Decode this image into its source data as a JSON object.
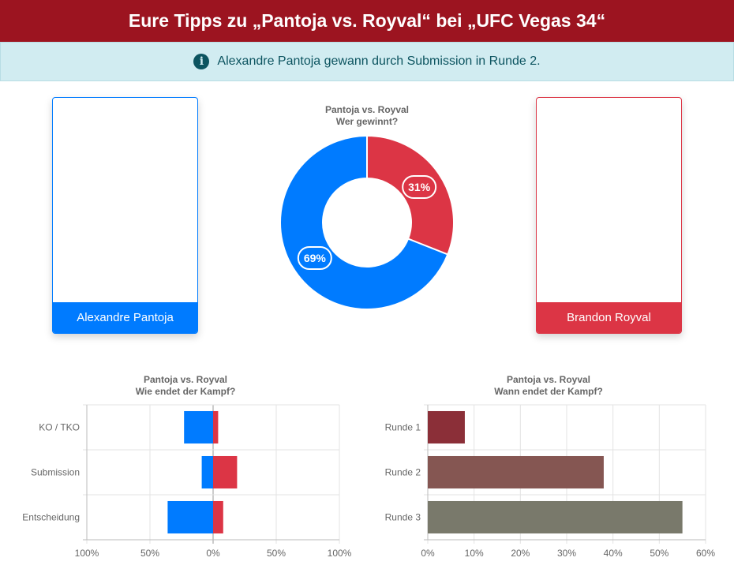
{
  "header": {
    "title": "Eure Tipps zu „Pantoja vs. Royval“ bei „UFC Vegas 34“"
  },
  "info": {
    "icon": "info-circle-icon",
    "text": "Alexandre Pantoja gewann durch Submission in Runde 2."
  },
  "fighters": {
    "left": {
      "name": "Alexandre Pantoja",
      "color": "#007bff"
    },
    "right": {
      "name": "Brandon Royval",
      "color": "#dc3545"
    }
  },
  "chart_data": [
    {
      "type": "pie",
      "title": "Pantoja vs. Royval",
      "subtitle": "Wer gewinnt?",
      "categories": [
        "Alexandre Pantoja",
        "Brandon Royval"
      ],
      "values": [
        69,
        31
      ],
      "labels": [
        "69%",
        "31%"
      ],
      "colors": [
        "#007bff",
        "#dc3545"
      ]
    },
    {
      "type": "bar",
      "orientation": "horizontal-diverging",
      "title": "Pantoja vs. Royval",
      "subtitle": "Wie endet der Kampf?",
      "categories": [
        "KO / TKO",
        "Submission",
        "Entscheidung"
      ],
      "series": [
        {
          "values": [
            -23,
            -9,
            -36
          ],
          "color": "#007bff"
        },
        {
          "values": [
            4,
            19,
            8
          ],
          "color": "#dc3545"
        }
      ],
      "xlim": [
        -100,
        100
      ],
      "xticks": [
        "100%",
        "50%",
        "0%",
        "50%",
        "100%"
      ],
      "grid": true
    },
    {
      "type": "bar",
      "orientation": "horizontal",
      "title": "Pantoja vs. Royval",
      "subtitle": "Wann endet der Kampf?",
      "categories": [
        "Runde 1",
        "Runde 2",
        "Runde 3"
      ],
      "values": [
        8,
        38,
        55
      ],
      "colors": [
        "#8b2f38",
        "#855652",
        "#79796b"
      ],
      "xlim": [
        0,
        60
      ],
      "xticks": [
        "0%",
        "10%",
        "20%",
        "30%",
        "40%",
        "50%",
        "60%"
      ],
      "grid": true
    }
  ]
}
